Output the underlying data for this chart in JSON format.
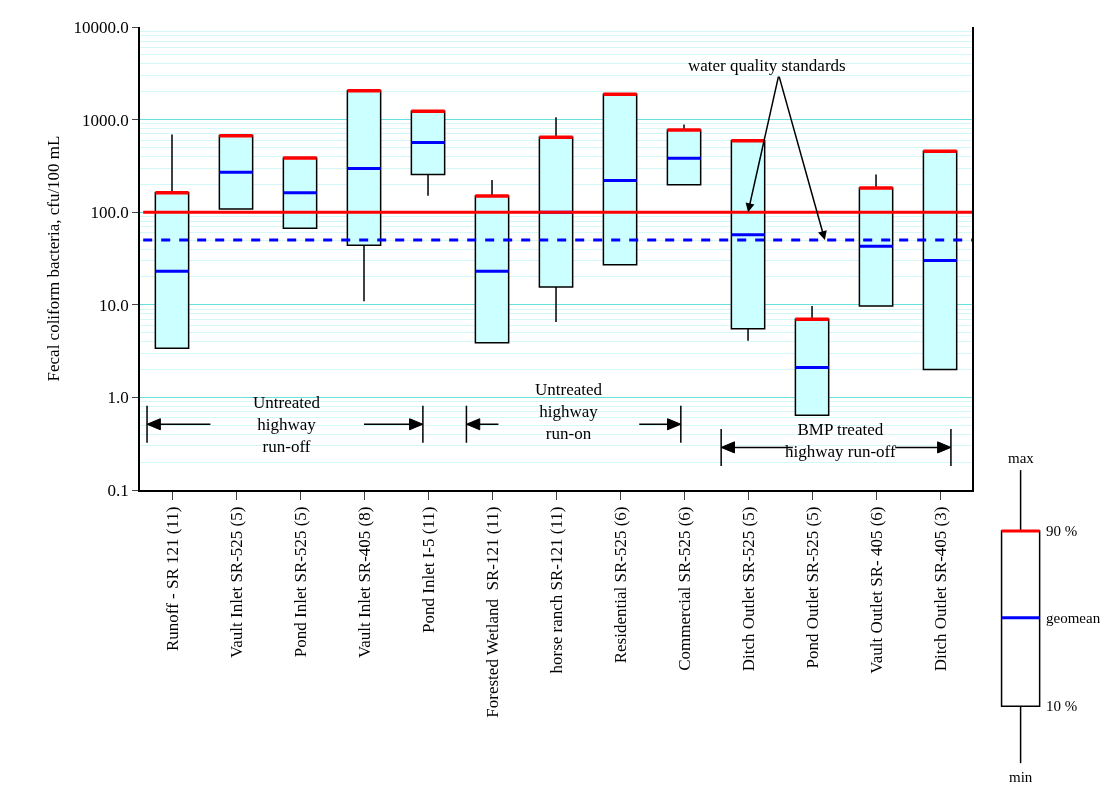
{
  "chart_data": {
    "type": "box",
    "ylabel": "Fecal coliform bacteria, cfu/100 mL",
    "categories": [
      "Runoff - SR 121 (11)",
      "Vault Inlet SR-525 (5)",
      "Pond Inlet SR-525 (5)",
      "Vault Inlet SR-405 (8)",
      "Pond Inlet I-5 (11)",
      "Forested Wetland  SR-121 (11)",
      "horse ranch SR-121 (11)",
      "Residential SR-525 (6)",
      "Commercial SR-525 (6)",
      "Ditch Outlet SR-525 (5)",
      "Pond Outlet SR-525 (5)",
      "Vault Outlet SR- 405 (6)",
      "Ditch Outlet SR-405 (3)"
    ],
    "series": [
      {
        "color": "#ccffff",
        "boxes": [
          {
            "low": 3.4,
            "q1": 3.4,
            "median": 23,
            "q3": 162,
            "high": 690
          },
          {
            "low": 108,
            "q1": 108,
            "median": 270,
            "q3": 670,
            "high": 670
          },
          {
            "low": 67,
            "q1": 67,
            "median": 162,
            "q3": 384,
            "high": 384
          },
          {
            "low": 10.9,
            "q1": 44,
            "median": 297,
            "q3": 2050,
            "high": 2050
          },
          {
            "low": 151,
            "q1": 255,
            "median": 567,
            "q3": 1230,
            "high": 1230
          },
          {
            "low": 3.9,
            "q1": 3.9,
            "median": 23,
            "q3": 150,
            "high": 223
          },
          {
            "low": 6.5,
            "q1": 15.6,
            "median": 100,
            "q3": 646,
            "high": 1060
          },
          {
            "low": 27,
            "q1": 27,
            "median": 220,
            "q3": 1880,
            "high": 1880
          },
          {
            "low": 198,
            "q1": 198,
            "median": 383,
            "q3": 770,
            "high": 885
          },
          {
            "low": 4.1,
            "q1": 5.5,
            "median": 57,
            "q3": 590,
            "high": 590
          },
          {
            "low": 0.64,
            "q1": 0.64,
            "median": 2.1,
            "q3": 7.0,
            "high": 9.7
          },
          {
            "low": 9.7,
            "q1": 9.7,
            "median": 43,
            "q3": 183,
            "high": 255
          },
          {
            "low": 2.0,
            "q1": 2.0,
            "median": 30,
            "q3": 456,
            "high": 456
          }
        ]
      }
    ],
    "log": true,
    "ylim": [
      0.1,
      10000
    ],
    "yticks": [
      {
        "value": 0.1,
        "label": "0.1"
      },
      {
        "value": 1,
        "label": "1.0"
      },
      {
        "value": 10,
        "label": "10.0"
      },
      {
        "value": 100,
        "label": "100.0"
      },
      {
        "value": 1000,
        "label": "1000.0"
      },
      {
        "value": 10000,
        "label": "10000.0"
      }
    ],
    "grid": "y",
    "ref_lines": [
      {
        "axis": "y",
        "value": 100,
        "color": "#ff0000",
        "line_style": "solid"
      },
      {
        "axis": "y",
        "value": 50,
        "color": "#0000ff",
        "line_style": "dashed"
      }
    ],
    "annotations": [
      {
        "text": "water quality standards",
        "x": "Ditch Outlet SR-525 (5)",
        "y": 100
      },
      "Untreated\nhighway\nrun-off",
      "Untreated\nhighway\nrun-on",
      "BMP treated\nhighway run-off",
      "max",
      "90 %",
      "geomean",
      "10 %",
      "min"
    ]
  }
}
